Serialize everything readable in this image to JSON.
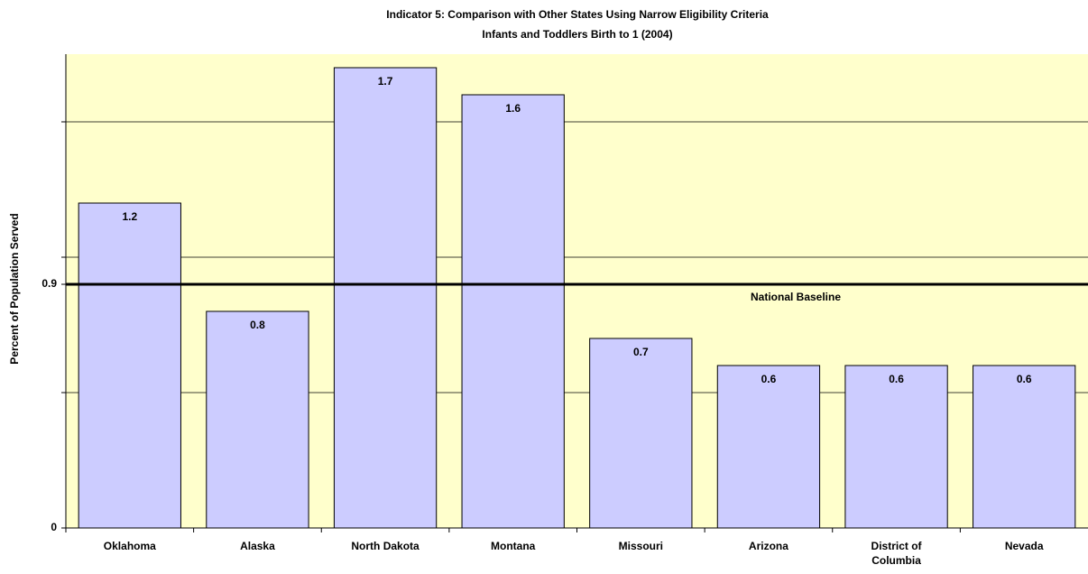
{
  "chart_data": {
    "type": "bar",
    "title": "Indicator 5:  Comparison with Other States Using Narrow Eligibility Criteria",
    "subtitle": "Infants and Toddlers Birth to 1 (2004)",
    "y_label": "Percent of Population Served",
    "categories": [
      "Oklahoma",
      "Alaska",
      "North Dakota",
      "Montana",
      "Missouri",
      "Arizona",
      "District of Columbia",
      "Nevada"
    ],
    "values": [
      1.2,
      0.8,
      1.7,
      1.6,
      0.7,
      0.6,
      0.6,
      0.6
    ],
    "color": "#ccccff",
    "ylim": [
      0,
      1.75
    ],
    "yticks": [
      0,
      0.9
    ],
    "grid_lines": [
      0.5,
      1,
      1.5
    ],
    "baseline": {
      "value": 0.9,
      "label": "National Baseline"
    },
    "background": "#ffffcc"
  }
}
